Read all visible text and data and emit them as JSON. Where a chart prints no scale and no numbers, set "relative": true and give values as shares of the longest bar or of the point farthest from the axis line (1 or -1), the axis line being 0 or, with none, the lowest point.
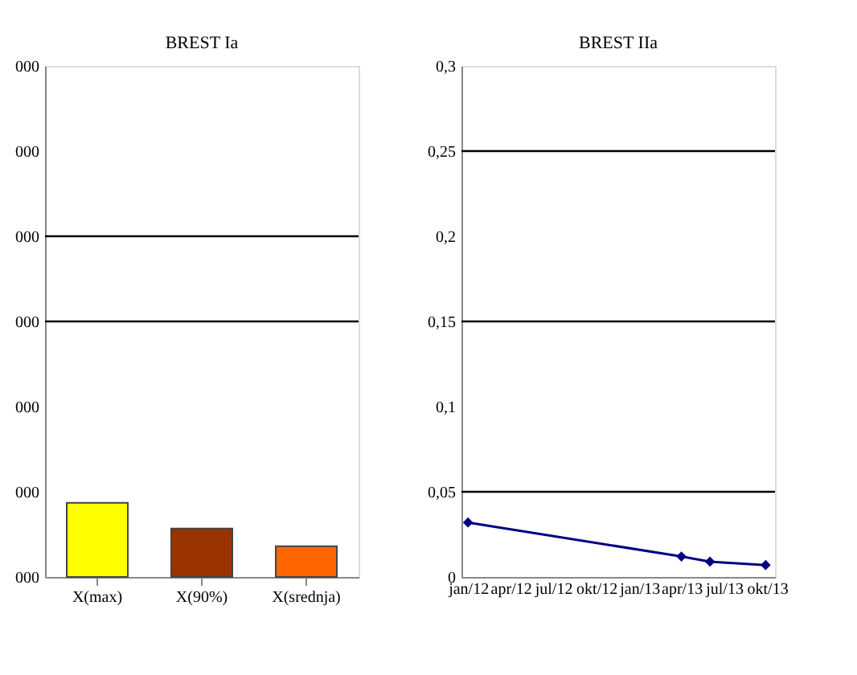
{
  "chart_data": [
    {
      "type": "bar",
      "title": "BREST Ia",
      "categories": [
        "X(max)",
        "X(90%)",
        "X(srednja)"
      ],
      "values": [
        1,
        0.655,
        0.414
      ],
      "colors": [
        "#ffff00",
        "#993300",
        "#ff6600"
      ],
      "relative": true,
      "annotations": [
        "000",
        "000",
        "000",
        "000",
        "000",
        "000",
        "000"
      ],
      "ref_lines": [
        {
          "axis": "y",
          "value": 3.45,
          "color": "#000000"
        },
        {
          "axis": "y",
          "value": 4.6,
          "color": "#000000"
        }
      ]
    },
    {
      "type": "line",
      "title": "BREST IIa",
      "x": [
        "2012-01-15",
        "2013-04-15",
        "2013-06-15",
        "2013-10-12"
      ],
      "series": [
        {
          "color": "#000080",
          "values": [
            0.032,
            0.012,
            0.009,
            0.007
          ]
        }
      ],
      "marker": "diamond",
      "xlim": [
        "2012-01-01",
        "2013-11-01"
      ],
      "xticks": [
        {
          "value": "2012-01-15",
          "label": "jan/12"
        },
        {
          "value": "2012-04-15",
          "label": "apr/12"
        },
        {
          "value": "2012-07-15",
          "label": "jul/12"
        },
        {
          "value": "2012-10-15",
          "label": "okt/12"
        },
        {
          "value": "2013-01-15",
          "label": "jan/13"
        },
        {
          "value": "2013-04-15",
          "label": "apr/13"
        },
        {
          "value": "2013-07-15",
          "label": "jul/13"
        },
        {
          "value": "2013-10-15",
          "label": "okt/13"
        }
      ],
      "ylim": [
        0,
        0.3
      ],
      "yticks": [
        0,
        {
          "value": 0.05,
          "label": "0,05"
        },
        {
          "value": 0.1,
          "label": "0,1"
        },
        {
          "value": 0.15,
          "label": "0,15"
        },
        {
          "value": 0.2,
          "label": "0,2"
        },
        {
          "value": 0.25,
          "label": "0,25"
        },
        {
          "value": 0.3,
          "label": "0,3"
        }
      ],
      "ref_lines": [
        {
          "axis": "y",
          "value": 0.05,
          "color": "#000000"
        },
        {
          "axis": "y",
          "value": 0.15,
          "color": "#000000"
        },
        {
          "axis": "y",
          "value": 0.25,
          "color": "#000000"
        }
      ]
    }
  ]
}
